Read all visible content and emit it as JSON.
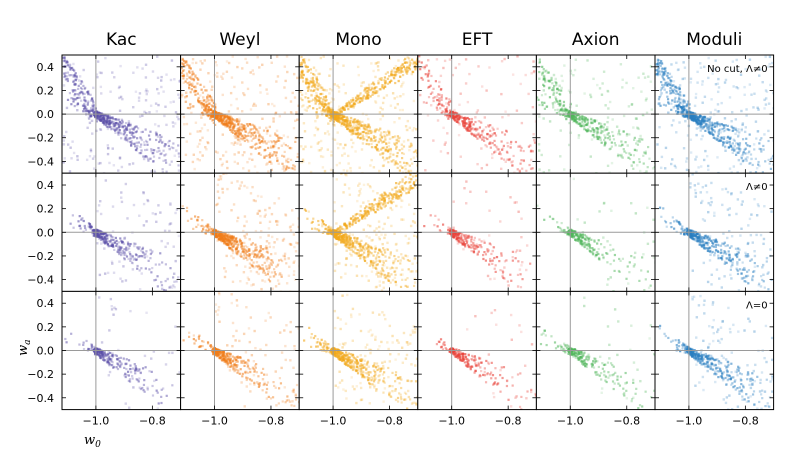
{
  "chart_data": {
    "type": "heatmap",
    "title": "",
    "xlabel": "w0",
    "ylabel": "wa",
    "xlim": [
      -1.12,
      -0.7
    ],
    "ylim": [
      -0.5,
      0.5
    ],
    "x_ticks": [
      -1.0,
      -0.8
    ],
    "x_tick_labels": [
      "−1.0",
      "−0.8"
    ],
    "y_ticks": [
      0.4,
      0.2,
      0.0,
      -0.2,
      -0.4
    ],
    "y_tick_labels": [
      "0.4",
      "0.2",
      "0.0",
      "−0.2",
      "−0.4"
    ],
    "reference_lines": {
      "w0": -1.0,
      "wa": 0.0
    },
    "columns": [
      {
        "name": "Kac",
        "color": "#5b4fa8"
      },
      {
        "name": "Weyl",
        "color": "#f07d1a"
      },
      {
        "name": "Mono",
        "color": "#f2a91c"
      },
      {
        "name": "EFT",
        "color": "#e9433a"
      },
      {
        "name": "Axion",
        "color": "#4fb55a"
      },
      {
        "name": "Moduli",
        "color": "#2a7fc1"
      }
    ],
    "rows": [
      {
        "label": "No cut, Λ≠0",
        "density": [
          0.65,
          0.85,
          0.95,
          0.35,
          0.45,
          0.8
        ]
      },
      {
        "label": "Λ≠0",
        "density": [
          0.35,
          0.7,
          0.75,
          0.15,
          0.12,
          0.45
        ]
      },
      {
        "label": "Λ=0",
        "density": [
          0.12,
          0.35,
          0.6,
          0.12,
          0.12,
          0.45
        ]
      }
    ],
    "grid": false,
    "legend": "none"
  },
  "axis_labels": {
    "x_main": "w",
    "x_sub": "0",
    "y_main": "w",
    "y_sub": "a"
  }
}
